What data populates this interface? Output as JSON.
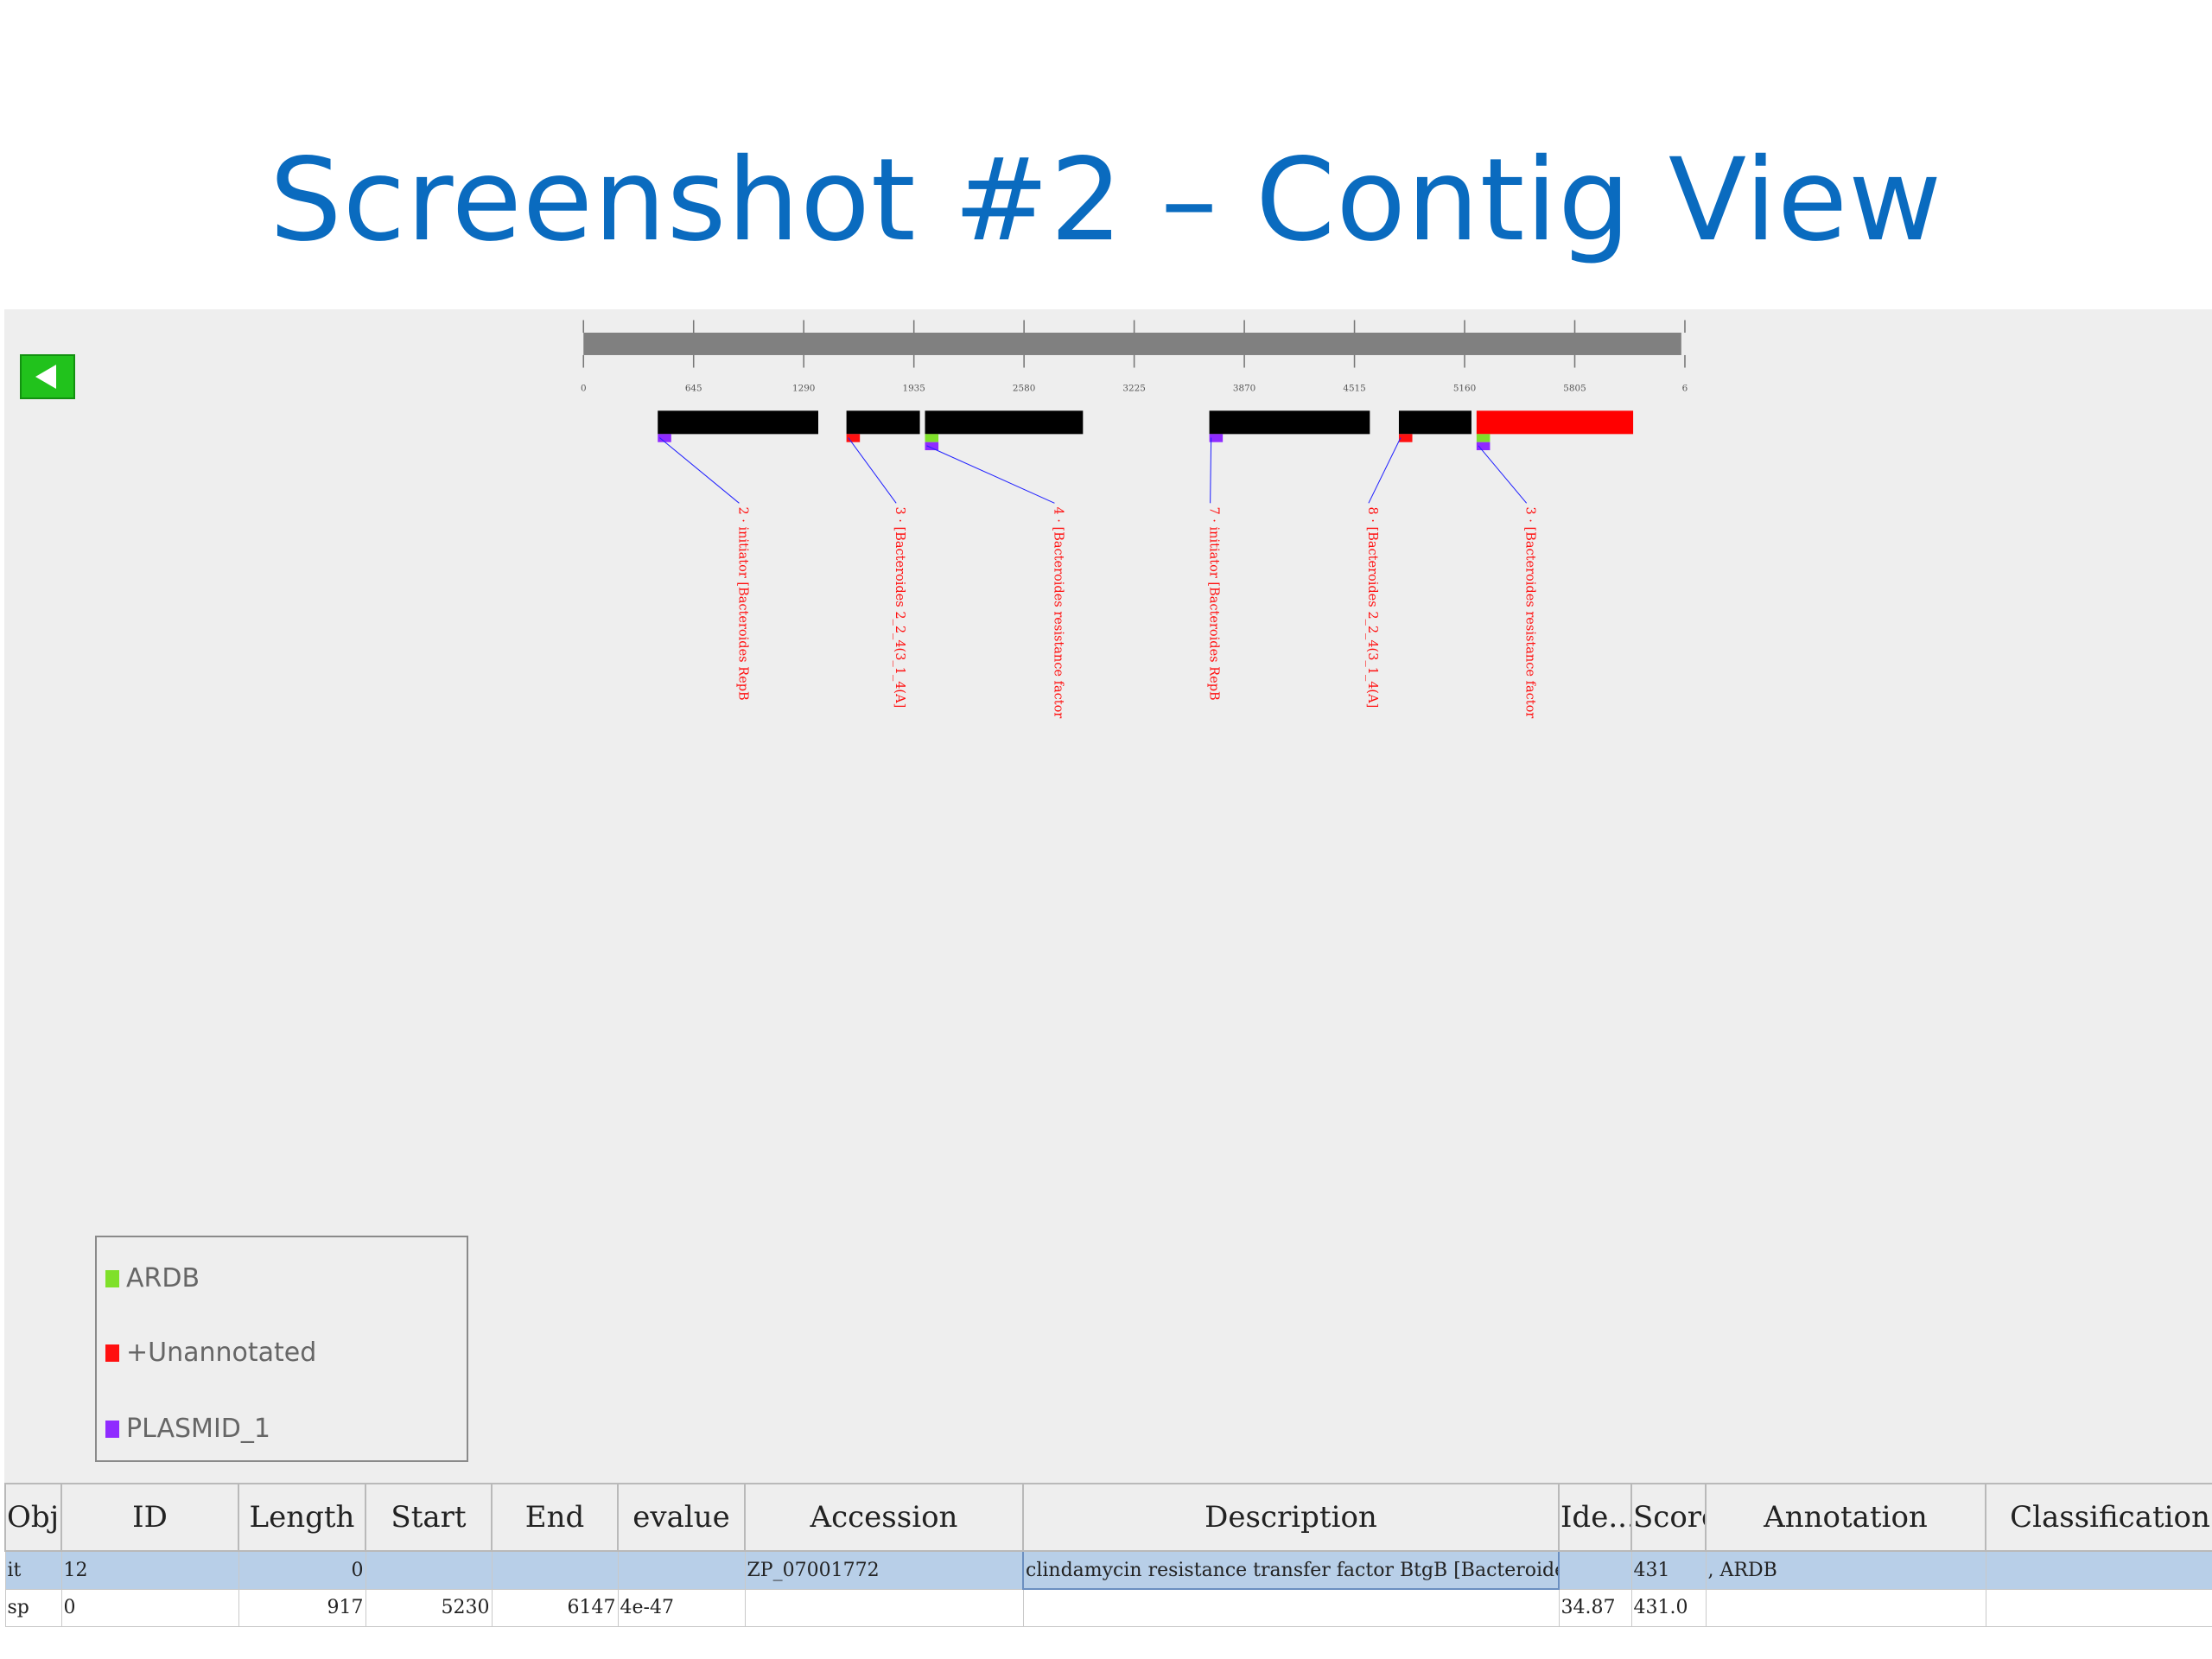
{
  "slide": {
    "title": "Screenshot #2 – Contig View"
  },
  "colors": {
    "title": "#0a6bbf",
    "ardb": "#7fe02a",
    "unannotated": "#ff1010",
    "plasmid": "#8f2bff",
    "gene": "#000000",
    "highlight": "#ff0000",
    "back_button": "#21c21c"
  },
  "toolbar": {
    "back_icon": "left-arrow-icon"
  },
  "ruler": {
    "ticks": [
      "0",
      "645",
      "1290",
      "1935",
      "2580",
      "3225",
      "3870",
      "4515",
      "5160",
      "5805",
      "6"
    ]
  },
  "tracks": [
    {
      "start": 435,
      "end": 1375,
      "color": "#000000",
      "marks": [
        "plasmid"
      ],
      "label": "2 · initiator [Bacteroides RepB"
    },
    {
      "start": 1540,
      "end": 1970,
      "color": "#000000",
      "marks": [
        "unannotated"
      ],
      "label": "3 · [Bacteroides 2_2_4(3_1_4(A]"
    },
    {
      "start": 2000,
      "end": 2925,
      "color": "#000000",
      "marks": [
        "ardb",
        "plasmid"
      ],
      "label": "4 · [Bacteroides resistance factor"
    },
    {
      "start": 3665,
      "end": 4605,
      "color": "#000000",
      "marks": [
        "plasmid"
      ],
      "label": "7 · initiator [Bacteroides RepB"
    },
    {
      "start": 4775,
      "end": 5200,
      "color": "#000000",
      "marks": [
        "unannotated"
      ],
      "label": "8 · [Bacteroides 2_2_4(3_1_4(A]"
    },
    {
      "start": 5230,
      "end": 6147,
      "color": "#ff0000",
      "marks": [
        "ardb",
        "plasmid"
      ],
      "label": "3 · [Bacteroides resistance factor"
    }
  ],
  "legend": {
    "items": [
      {
        "label": "ARDB",
        "color": "#7fe02a"
      },
      {
        "label": "+Unannotated",
        "color": "#ff1010"
      },
      {
        "label": "PLASMID_1",
        "color": "#8f2bff"
      }
    ]
  },
  "table": {
    "headers": [
      "Obj...",
      "ID",
      "Length",
      "Start",
      "End",
      "evalue",
      "Accession",
      "Description",
      "Ide...",
      "Score",
      "Annotation",
      "Classification"
    ],
    "rows": [
      [
        "it",
        "12",
        "0",
        "",
        "",
        "",
        "ZP_07001772",
        "clindamycin resistance transfer factor BtgB [Bacteroides ...",
        "",
        "431",
        ", ARDB",
        ""
      ],
      [
        "sp",
        "0",
        "917",
        "5230",
        "6147",
        "4e-47",
        "",
        "",
        "34.87",
        "431.0",
        "",
        ""
      ]
    ]
  }
}
